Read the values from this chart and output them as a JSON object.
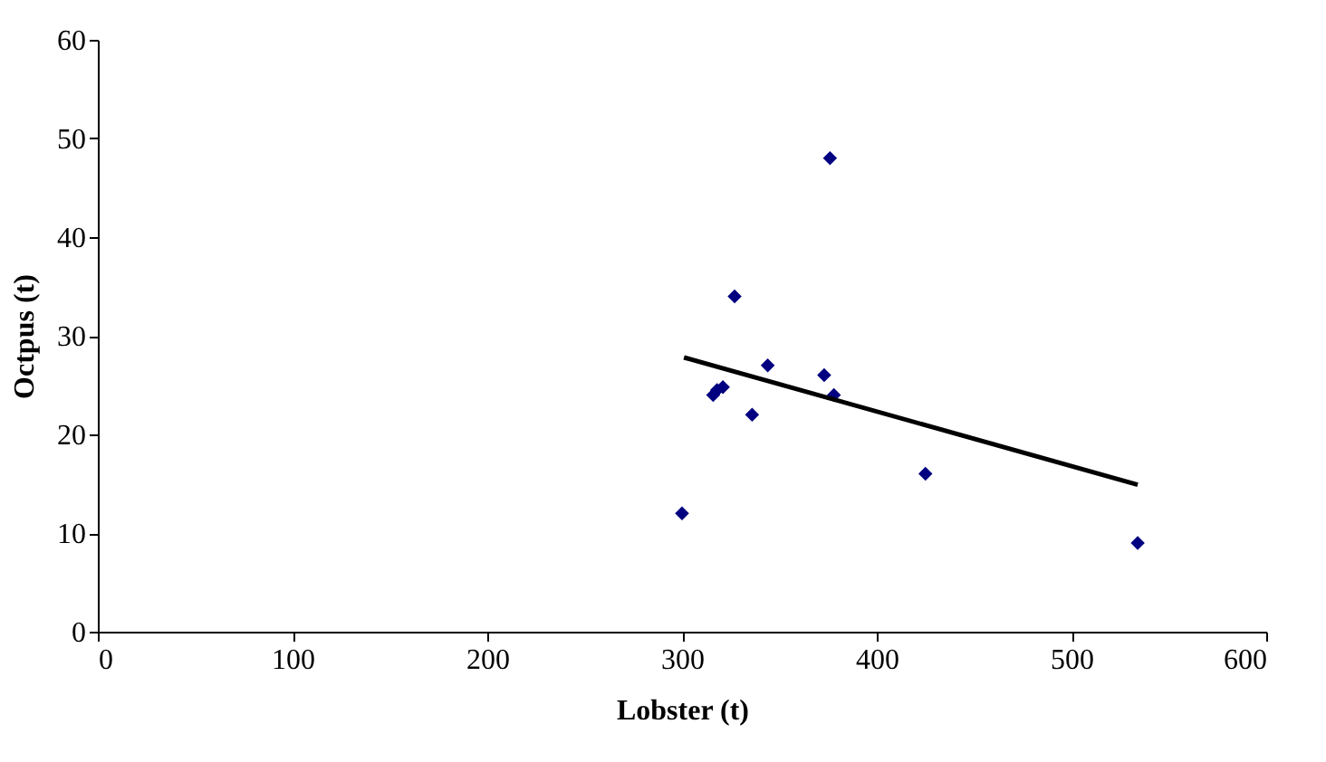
{
  "chart_data": {
    "type": "scatter",
    "xlabel": "Lobster (t)",
    "ylabel": "Octpus (t)",
    "xlim": [
      0,
      600
    ],
    "ylim": [
      0,
      60
    ],
    "xticks": [
      0,
      100,
      200,
      300,
      400,
      500,
      600
    ],
    "yticks": [
      0,
      10,
      20,
      30,
      40,
      50,
      60
    ],
    "grid": false,
    "marker": "diamond",
    "series": [
      {
        "color": "#000080",
        "x": [
          300,
          316,
          318,
          321,
          327,
          336,
          344,
          373,
          376,
          378,
          425,
          534
        ],
        "values": [
          12,
          24,
          24.5,
          24.8,
          34,
          22,
          27,
          26,
          48,
          24,
          16,
          9
        ]
      },
      {
        "type": "line",
        "color": "#000000",
        "marker": "none",
        "line_style": "solid",
        "x": [
          301,
          534
        ],
        "values": [
          27.8,
          14.9
        ]
      }
    ]
  }
}
